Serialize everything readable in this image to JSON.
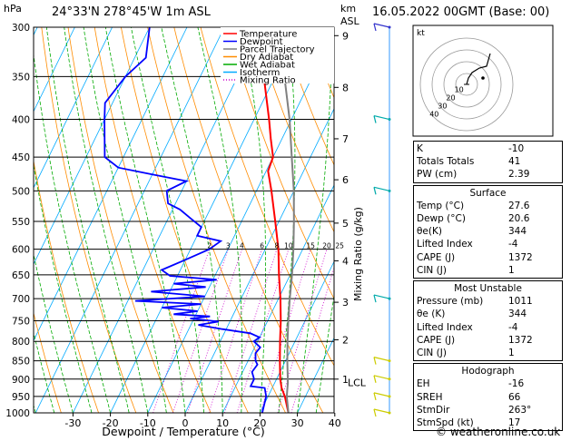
{
  "header": {
    "location": "24°33'N  278°45'W  1m  ASL",
    "datetime": "16.05.2022  00GMT  (Base: 00)",
    "pressure_unit": "hPa",
    "height_unit_km": "km",
    "height_unit_asl": "ASL"
  },
  "footer": {
    "credit": "© weatheronline.co.uk"
  },
  "legend": [
    {
      "label": "Temperature",
      "color": "#ff0000"
    },
    {
      "label": "Dewpoint",
      "color": "#0000ff"
    },
    {
      "label": "Parcel Trajectory",
      "color": "#808080"
    },
    {
      "label": "Dry Adiabat",
      "color": "#ff8c00"
    },
    {
      "label": "Wet Adiabat",
      "color": "#00aa00"
    },
    {
      "label": "Isotherm",
      "color": "#00aaff"
    },
    {
      "label": "Mixing Ratio",
      "color": "#cc00cc"
    }
  ],
  "chart_data": {
    "type": "line",
    "xlabel": "Dewpoint / Temperature (°C)",
    "y_right_label": "Mixing Ratio (g/kg)",
    "x_ticks": [
      -30,
      -20,
      -10,
      0,
      10,
      20,
      30,
      40
    ],
    "pressure_levels": [
      300,
      350,
      400,
      450,
      500,
      550,
      600,
      650,
      700,
      750,
      800,
      850,
      900,
      950,
      1000
    ],
    "km_ticks": [
      {
        "label": "9",
        "p": 308
      },
      {
        "label": "8",
        "p": 362
      },
      {
        "label": "7",
        "p": 425
      },
      {
        "label": "6",
        "p": 483
      },
      {
        "label": "5",
        "p": 553
      },
      {
        "label": "4",
        "p": 622
      },
      {
        "label": "3",
        "p": 708
      },
      {
        "label": "2",
        "p": 796
      },
      {
        "label": "1",
        "p": 900
      }
    ],
    "lcl_label": "LCL",
    "lcl_p": 910,
    "mixing_ratio_labels": [
      "2",
      "3",
      "4",
      "6",
      "8",
      "10",
      "15",
      "20",
      "25"
    ],
    "mixing_ratio_values": [
      2,
      3,
      4,
      6,
      8,
      10,
      15,
      20,
      25
    ],
    "series": [
      {
        "name": "Temperature",
        "color": "#ff0000",
        "points": [
          [
            1000,
            27.6
          ],
          [
            950,
            24.5
          ],
          [
            925,
            22.5
          ],
          [
            900,
            21
          ],
          [
            850,
            18.5
          ],
          [
            800,
            16
          ],
          [
            750,
            13.5
          ],
          [
            700,
            10.5
          ],
          [
            650,
            7
          ],
          [
            600,
            3.5
          ],
          [
            550,
            -1
          ],
          [
            500,
            -6
          ],
          [
            470,
            -9.5
          ],
          [
            450,
            -10
          ],
          [
            425,
            -13
          ],
          [
            400,
            -16
          ],
          [
            350,
            -23
          ],
          [
            300,
            -32
          ]
        ]
      },
      {
        "name": "Dewpoint",
        "color": "#0000ff",
        "points": [
          [
            1000,
            20.6
          ],
          [
            950,
            19.5
          ],
          [
            925,
            18
          ],
          [
            920,
            14
          ],
          [
            900,
            14
          ],
          [
            880,
            12.5
          ],
          [
            860,
            13
          ],
          [
            850,
            12
          ],
          [
            830,
            11
          ],
          [
            815,
            11.5
          ],
          [
            800,
            9
          ],
          [
            790,
            10
          ],
          [
            780,
            7
          ],
          [
            770,
            -1
          ],
          [
            760,
            -8
          ],
          [
            752,
            -3
          ],
          [
            745,
            -11
          ],
          [
            740,
            -6
          ],
          [
            735,
            -16
          ],
          [
            728,
            -10
          ],
          [
            720,
            -20
          ],
          [
            712,
            -10
          ],
          [
            705,
            -28
          ],
          [
            695,
            -10
          ],
          [
            685,
            -25
          ],
          [
            675,
            -11
          ],
          [
            668,
            -20
          ],
          [
            660,
            -9
          ],
          [
            652,
            -22
          ],
          [
            640,
            -25
          ],
          [
            620,
            -20
          ],
          [
            600,
            -15
          ],
          [
            585,
            -13
          ],
          [
            575,
            -20
          ],
          [
            560,
            -20
          ],
          [
            545,
            -24
          ],
          [
            530,
            -28
          ],
          [
            520,
            -32
          ],
          [
            510,
            -33
          ],
          [
            500,
            -34
          ],
          [
            485,
            -30
          ],
          [
            475,
            -40
          ],
          [
            465,
            -50
          ],
          [
            450,
            -55
          ],
          [
            400,
            -60
          ],
          [
            380,
            -62
          ],
          [
            350,
            -60
          ],
          [
            330,
            -57
          ],
          [
            300,
            -60
          ]
        ]
      },
      {
        "name": "Parcel Trajectory",
        "color": "#808080",
        "points": [
          [
            1000,
            27.6
          ],
          [
            950,
            25
          ],
          [
            910,
            23.5
          ],
          [
            850,
            20.5
          ],
          [
            800,
            18
          ],
          [
            750,
            15.5
          ],
          [
            700,
            13
          ],
          [
            650,
            10.5
          ],
          [
            600,
            7.5
          ],
          [
            550,
            4
          ],
          [
            500,
            0
          ],
          [
            450,
            -5
          ],
          [
            400,
            -10.5
          ],
          [
            350,
            -17.5
          ],
          [
            300,
            -26
          ]
        ]
      }
    ],
    "wind_barbs": [
      {
        "p": 1000,
        "color": "#cccc00"
      },
      {
        "p": 950,
        "color": "#cccc00"
      },
      {
        "p": 900,
        "color": "#cccc00"
      },
      {
        "p": 850,
        "color": "#cccc00"
      },
      {
        "p": 700,
        "color": "#00aaaa"
      },
      {
        "p": 500,
        "color": "#00aaaa"
      },
      {
        "p": 400,
        "color": "#00aaaa"
      },
      {
        "p": 300,
        "color": "#3333cc"
      }
    ]
  },
  "hodograph": {
    "unit_label": "kt",
    "ring_labels": [
      "10",
      "20",
      "30",
      "40"
    ]
  },
  "indices": {
    "rows": [
      {
        "label": "K",
        "value": "-10"
      },
      {
        "label": "Totals Totals",
        "value": "41"
      },
      {
        "label": "PW (cm)",
        "value": "2.39"
      }
    ]
  },
  "surface": {
    "title": "Surface",
    "rows": [
      {
        "label": "Temp (°C)",
        "value": "27.6"
      },
      {
        "label": "Dewp (°C)",
        "value": "20.6"
      },
      {
        "label": "θe(K)",
        "value": "344"
      },
      {
        "label": "Lifted Index",
        "value": "-4"
      },
      {
        "label": "CAPE (J)",
        "value": "1372"
      },
      {
        "label": "CIN (J)",
        "value": "1"
      }
    ]
  },
  "most_unstable": {
    "title": "Most Unstable",
    "rows": [
      {
        "label": "Pressure (mb)",
        "value": "1011"
      },
      {
        "label": "θe (K)",
        "value": "344"
      },
      {
        "label": "Lifted Index",
        "value": "-4"
      },
      {
        "label": "CAPE (J)",
        "value": "1372"
      },
      {
        "label": "CIN (J)",
        "value": "1"
      }
    ]
  },
  "hodograph_box": {
    "title": "Hodograph",
    "rows": [
      {
        "label": "EH",
        "value": "-16"
      },
      {
        "label": "SREH",
        "value": "66"
      },
      {
        "label": "StmDir",
        "value": "263°"
      },
      {
        "label": "StmSpd (kt)",
        "value": "17"
      }
    ]
  }
}
